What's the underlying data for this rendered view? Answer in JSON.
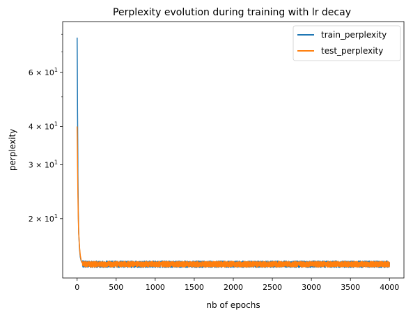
{
  "chart_data": {
    "type": "line",
    "title": "Perplexity evolution during training with lr decay",
    "xlabel": "nb of epochs",
    "ylabel": "perplexity",
    "yscale": "log",
    "xlim": [
      -185,
      4185
    ],
    "ylim": [
      12.8,
      88
    ],
    "x_ticks": [
      0,
      500,
      1000,
      1500,
      2000,
      2500,
      3000,
      3500,
      4000
    ],
    "x_tick_labels": [
      "0",
      "500",
      "1000",
      "1500",
      "2000",
      "2500",
      "3000",
      "3500",
      "4000"
    ],
    "y_major_ticks": [
      20,
      30,
      40,
      60
    ],
    "y_tick_labels": [
      {
        "value": 20,
        "mantissa": "2",
        "base": "10",
        "exp": "1"
      },
      {
        "value": 30,
        "mantissa": "3",
        "base": "10",
        "exp": "1"
      },
      {
        "value": 40,
        "mantissa": "4",
        "base": "10",
        "exp": "1"
      },
      {
        "value": 60,
        "mantissa": "6",
        "base": "10",
        "exp": "1"
      }
    ],
    "y_minor_ticks": [
      50,
      70,
      80
    ],
    "grid": false,
    "legend": "top-right",
    "series": [
      {
        "name": "train_perplexity",
        "color": "#1f77b4",
        "x": [
          0,
          5,
          10,
          15,
          20,
          30,
          40,
          50,
          60,
          70,
          80,
          100,
          150,
          200,
          300,
          500,
          1000,
          1500,
          2000,
          2500,
          3000,
          3500,
          4000
        ],
        "y": [
          78,
          45,
          28,
          21,
          18,
          16,
          15,
          14.6,
          14.4,
          14.3,
          14.2,
          14.2,
          14.2,
          14.2,
          14.2,
          14.2,
          14.2,
          14.2,
          14.2,
          14.2,
          14.2,
          14.2,
          14.2
        ],
        "noise": 0.35
      },
      {
        "name": "test_perplexity",
        "color": "#ff7f0e",
        "x": [
          0,
          5,
          10,
          15,
          20,
          30,
          40,
          50,
          60,
          70,
          80,
          100,
          150,
          200,
          300,
          500,
          1000,
          1500,
          2000,
          2500,
          3000,
          3500,
          4000
        ],
        "y": [
          40,
          30,
          24,
          20,
          18,
          16.2,
          15.2,
          14.7,
          14.4,
          14.3,
          14.25,
          14.2,
          14.2,
          14.2,
          14.2,
          14.2,
          14.2,
          14.2,
          14.2,
          14.2,
          14.2,
          14.2,
          14.2
        ],
        "noise": 0.3
      }
    ]
  }
}
